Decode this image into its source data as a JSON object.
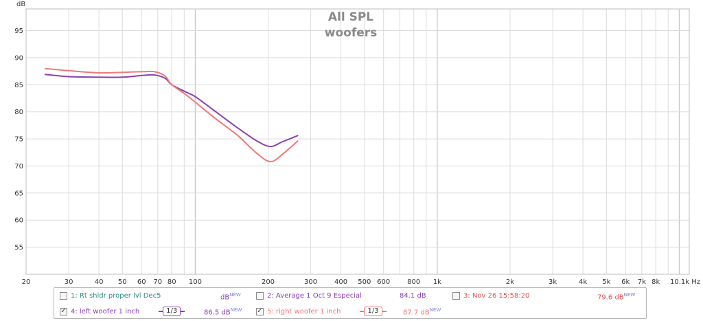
{
  "chart_data": {
    "type": "line",
    "title": [
      "All SPL",
      "woofers"
    ],
    "ylabel": "dB",
    "xlabel": "Hz",
    "x_scale": "log",
    "xlim": [
      20,
      11000
    ],
    "ylim": [
      50,
      99
    ],
    "grid": true,
    "y_ticks": [
      55,
      60,
      65,
      70,
      75,
      80,
      85,
      90,
      95
    ],
    "x_ticks": [
      {
        "value": 20,
        "label": "20"
      },
      {
        "value": 30,
        "label": "30"
      },
      {
        "value": 40,
        "label": "40"
      },
      {
        "value": 50,
        "label": "50"
      },
      {
        "value": 60,
        "label": "60"
      },
      {
        "value": 70,
        "label": "70"
      },
      {
        "value": 80,
        "label": "80"
      },
      {
        "value": 100,
        "label": "100"
      },
      {
        "value": 200,
        "label": "200"
      },
      {
        "value": 300,
        "label": "300"
      },
      {
        "value": 400,
        "label": "400"
      },
      {
        "value": 500,
        "label": "500"
      },
      {
        "value": 600,
        "label": "600"
      },
      {
        "value": 800,
        "label": "800"
      },
      {
        "value": 1000,
        "label": "1k"
      },
      {
        "value": 2000,
        "label": "2k"
      },
      {
        "value": 3000,
        "label": "3k"
      },
      {
        "value": 4000,
        "label": "4k"
      },
      {
        "value": 5000,
        "label": "5k"
      },
      {
        "value": 6000,
        "label": "6k"
      },
      {
        "value": 7000,
        "label": "7k"
      },
      {
        "value": 8000,
        "label": "8k"
      },
      {
        "value": 10100,
        "label": "10.1k Hz"
      }
    ],
    "series": [
      {
        "name": "4: left woofer 1 inch",
        "color": "#8b3fb5",
        "x": [
          24,
          30,
          40,
          50,
          60,
          68,
          75,
          80,
          90,
          100,
          120,
          150,
          180,
          205,
          230,
          265
        ],
        "y": [
          86.9,
          86.5,
          86.4,
          86.4,
          86.7,
          86.8,
          86.2,
          85.0,
          83.8,
          82.8,
          80.2,
          77.0,
          74.6,
          73.6,
          74.5,
          75.6
        ]
      },
      {
        "name": "5: right woofer 1 inch",
        "color": "#f07875",
        "x": [
          24,
          30,
          40,
          50,
          60,
          68,
          75,
          80,
          90,
          100,
          120,
          150,
          180,
          205,
          230,
          265
        ],
        "y": [
          88.0,
          87.6,
          87.2,
          87.3,
          87.4,
          87.4,
          86.6,
          85.0,
          83.4,
          81.8,
          78.9,
          75.6,
          72.3,
          70.8,
          72.2,
          74.6
        ]
      }
    ]
  },
  "legend": [
    {
      "id": "leg1",
      "checked": false,
      "label": "1: Rt shldr proper lvl Dec5",
      "label_color": "#2f8c88",
      "value": "dB",
      "value_color": "#8b3fb5",
      "new": "NEW",
      "smoothing": null
    },
    {
      "id": "leg2",
      "checked": false,
      "label": "2: Average 1 Oct 9 Especial",
      "label_color": "#8b3fb5",
      "value": "84.1 dB",
      "value_color": "#8b3fb5",
      "new": "",
      "smoothing": null
    },
    {
      "id": "leg3",
      "checked": false,
      "label": "3: Nov 26 15:58:20",
      "label_color": "#e05050",
      "value": "79.6 dB",
      "value_color": "#e05050",
      "new": "NEW",
      "smoothing": null
    },
    {
      "id": "leg4",
      "checked": true,
      "label": "4: left woofer 1 inch",
      "label_color": "#8b3fb5",
      "value": "86.5 dB",
      "value_color": "#8b3fb5",
      "new": "NEW",
      "smoothing": "1/3"
    },
    {
      "id": "leg5",
      "checked": true,
      "label": "5: right woofer 1 inch",
      "label_color": "#f07875",
      "value": "87.7 dB",
      "value_color": "#f07875",
      "new": "NEW",
      "smoothing": "1/3"
    }
  ],
  "new_color": "#7d7dd8",
  "check_mark": "✓"
}
